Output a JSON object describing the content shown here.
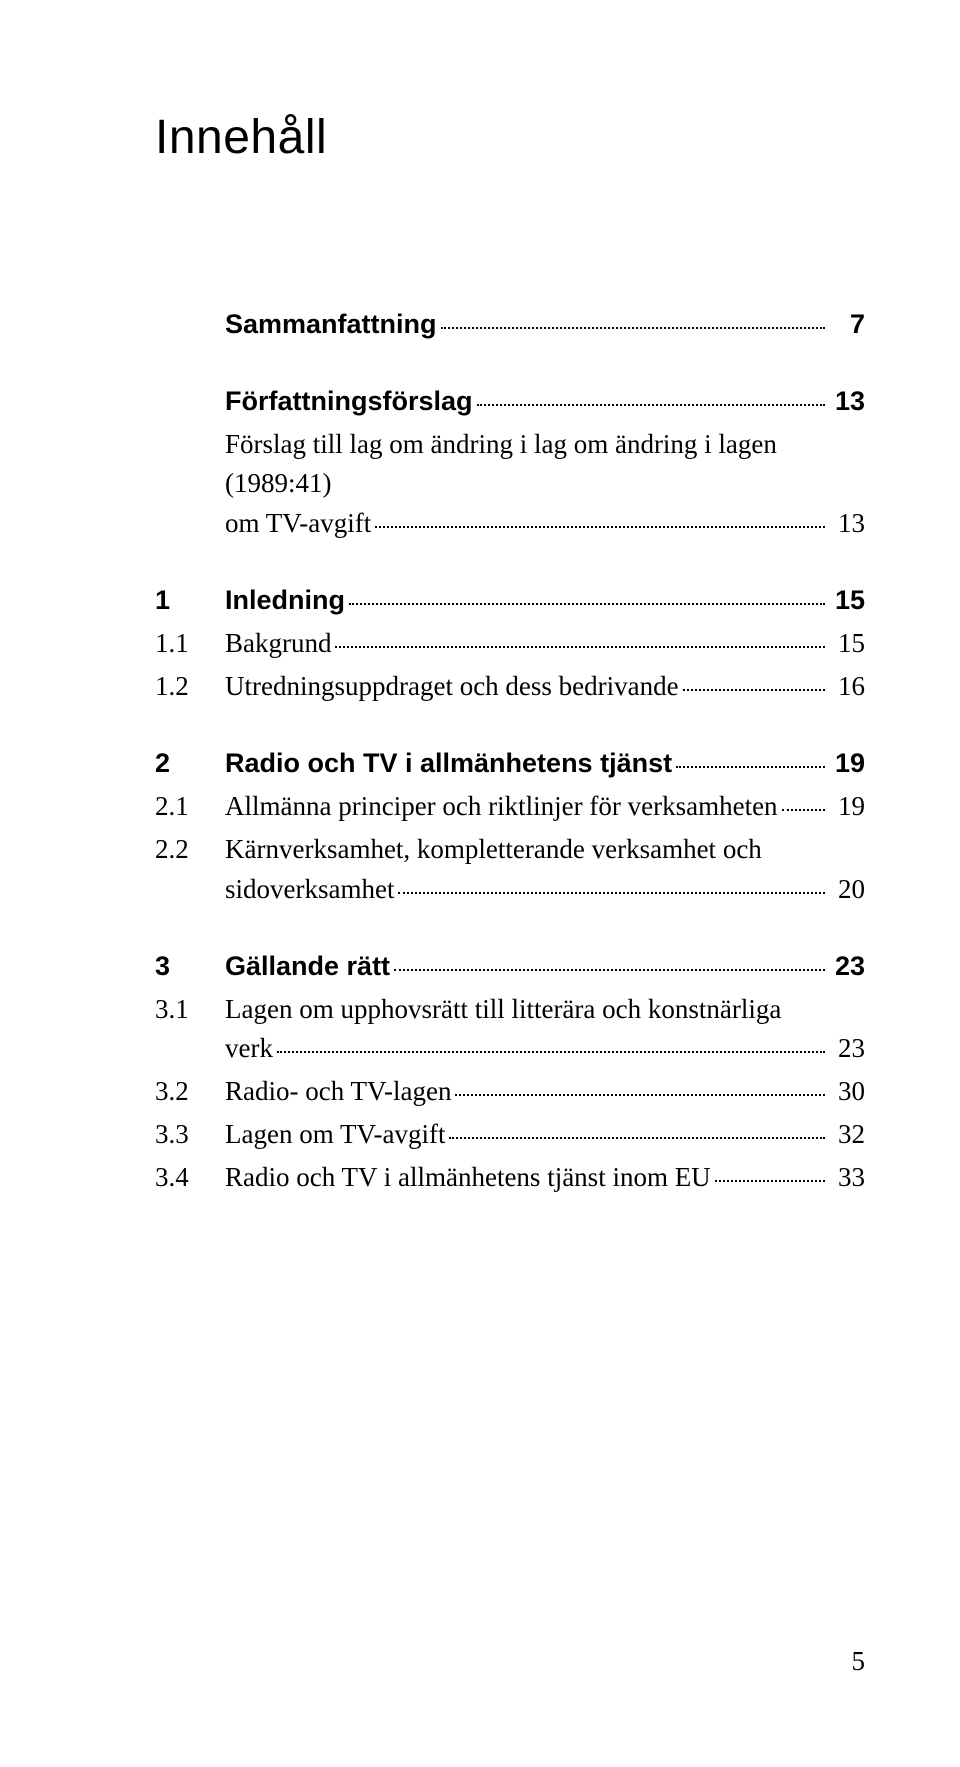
{
  "title": "Innehåll",
  "footer_page_number": "5",
  "colors": {
    "background": "#ffffff",
    "text": "#000000",
    "dot": "#000000"
  },
  "typography": {
    "title_font": "Helvetica Neue, Arial, sans-serif",
    "title_size_pt": 36,
    "section_font": "Helvetica Neue, Arial, sans-serif",
    "section_size_pt": 20,
    "body_font": "Georgia, Times New Roman, serif",
    "body_size_pt": 20
  },
  "rows": [
    {
      "type": "section",
      "num": "",
      "label": "Sammanfattning",
      "page": "7"
    },
    {
      "type": "section",
      "num": "",
      "label": "Författningsförslag",
      "page": "13"
    },
    {
      "type": "sub",
      "num": "",
      "label": "Förslag till lag om ändring i lag om ändring i lagen (1989:41)",
      "label2": "om TV-avgift",
      "page": "13"
    },
    {
      "type": "section",
      "num": "1",
      "label": "Inledning",
      "page": "15"
    },
    {
      "type": "sub",
      "num": "1.1",
      "label": "Bakgrund",
      "page": "15"
    },
    {
      "type": "sub",
      "num": "1.2",
      "label": "Utredningsuppdraget och dess bedrivande",
      "page": "16"
    },
    {
      "type": "section",
      "num": "2",
      "label": "Radio och TV i allmänhetens tjänst",
      "page": "19"
    },
    {
      "type": "sub",
      "num": "2.1",
      "label": "Allmänna principer och riktlinjer för verksamheten",
      "page": "19"
    },
    {
      "type": "sub",
      "num": "2.2",
      "label": "Kärnverksamhet, kompletterande verksamhet och",
      "label2": "sidoverksamhet",
      "page": "20"
    },
    {
      "type": "section",
      "num": "3",
      "label": "Gällande rätt",
      "page": "23"
    },
    {
      "type": "sub",
      "num": "3.1",
      "label": "Lagen om upphovsrätt till litterära och konstnärliga",
      "label2": "verk",
      "page": "23"
    },
    {
      "type": "sub",
      "num": "3.2",
      "label": "Radio- och TV-lagen",
      "page": "30"
    },
    {
      "type": "sub",
      "num": "3.3",
      "label": "Lagen om TV-avgift",
      "page": "32"
    },
    {
      "type": "sub",
      "num": "3.4",
      "label": "Radio och TV i allmänhetens tjänst inom EU",
      "page": "33"
    }
  ]
}
